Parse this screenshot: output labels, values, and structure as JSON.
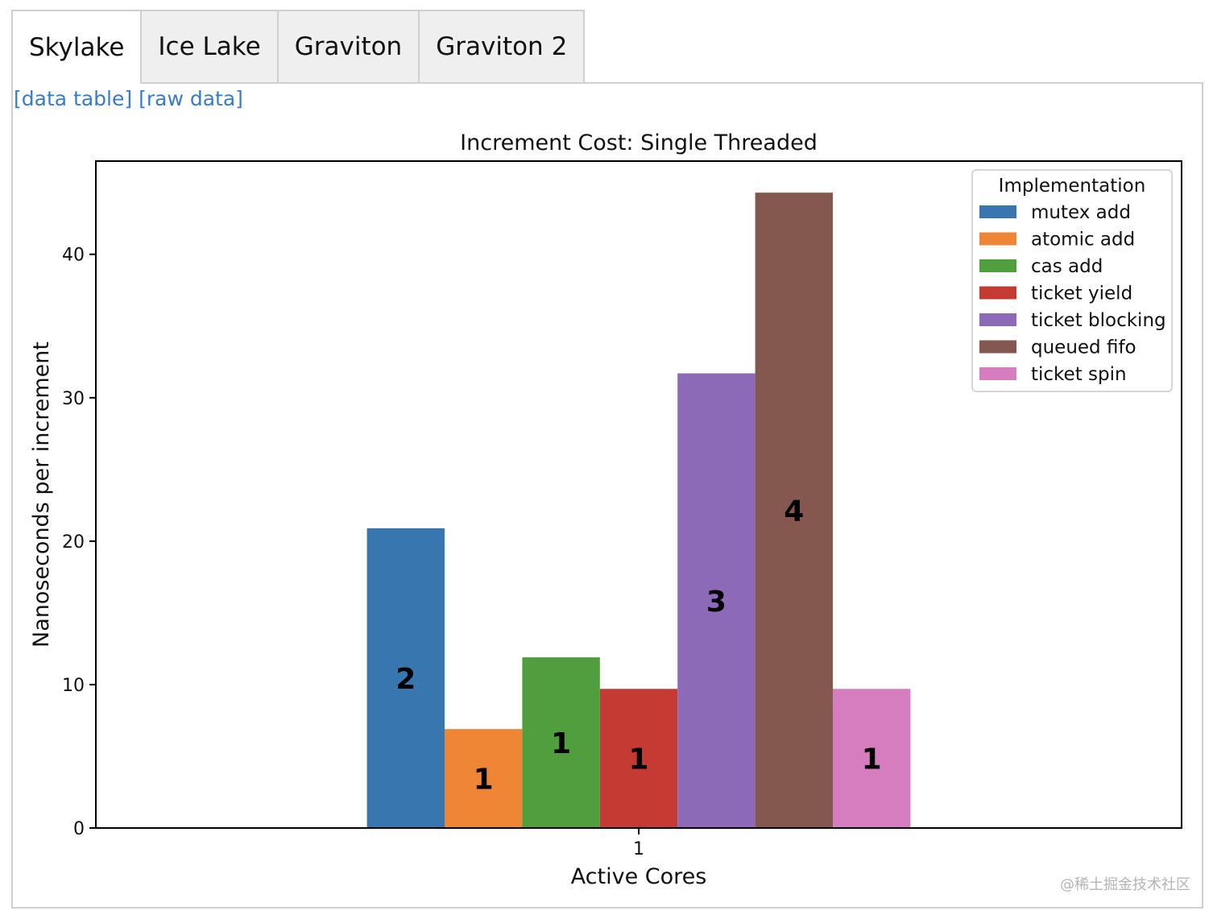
{
  "tabs": [
    {
      "label": "Skylake",
      "active": true
    },
    {
      "label": "Ice Lake",
      "active": false
    },
    {
      "label": "Graviton",
      "active": false
    },
    {
      "label": "Graviton 2",
      "active": false
    }
  ],
  "links": {
    "data_table": "[data table]",
    "raw_data": "[raw data]"
  },
  "watermark": "@稀土掘金技术社区",
  "chart_data": {
    "type": "bar",
    "title": "Increment Cost: Single Threaded",
    "xlabel": "Active Cores",
    "ylabel": "Nanoseconds per increment",
    "categories": [
      "1"
    ],
    "ylim": [
      0,
      46.5
    ],
    "yticks": [
      0,
      10,
      20,
      30,
      40
    ],
    "grid": false,
    "legend": {
      "title": "Implementation",
      "placement": "top-right"
    },
    "series": [
      {
        "name": "mutex add",
        "values": [
          20.9
        ],
        "label": "2",
        "color": "#3776ae"
      },
      {
        "name": "atomic add",
        "values": [
          6.9
        ],
        "label": "1",
        "color": "#ef8636"
      },
      {
        "name": "cas add",
        "values": [
          11.9
        ],
        "label": "1",
        "color": "#519e3e"
      },
      {
        "name": "ticket yield",
        "values": [
          9.7
        ],
        "label": "1",
        "color": "#c53a32"
      },
      {
        "name": "ticket blocking",
        "values": [
          31.7
        ],
        "label": "3",
        "color": "#8d6ab8"
      },
      {
        "name": "queued fifo",
        "values": [
          44.3
        ],
        "label": "4",
        "color": "#84584e"
      },
      {
        "name": "ticket spin",
        "values": [
          9.7
        ],
        "label": "1",
        "color": "#d57dbe"
      }
    ]
  }
}
